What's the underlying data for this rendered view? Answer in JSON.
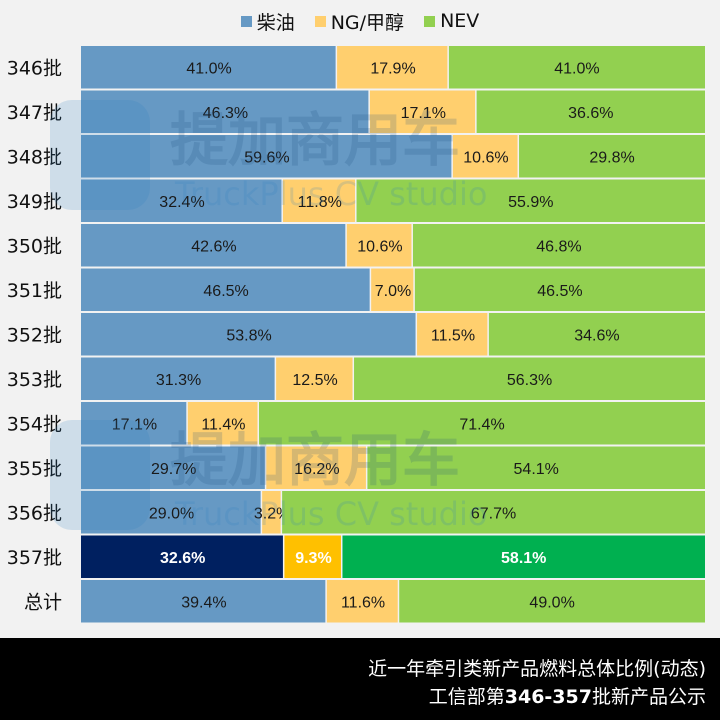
{
  "chart_data": {
    "type": "bar",
    "orientation": "horizontal",
    "stacked": "100%",
    "categories": [
      "346批",
      "347批",
      "348批",
      "349批",
      "350批",
      "351批",
      "352批",
      "353批",
      "354批",
      "355批",
      "356批",
      "357批",
      "总计"
    ],
    "series": [
      {
        "name": "柴油",
        "color": "#6699c4",
        "highlight_color": "#002060",
        "values": [
          41.0,
          46.3,
          59.6,
          32.4,
          42.6,
          46.5,
          53.8,
          31.3,
          17.1,
          29.7,
          29.0,
          32.6,
          39.4
        ],
        "labels": [
          "41.0%",
          "46.3%",
          "59.6%",
          "32.4%",
          "42.6%",
          "46.5%",
          "53.8%",
          "31.3%",
          "17.1%",
          "29.7%",
          "29.0%",
          "32.6%",
          "39.4%"
        ]
      },
      {
        "name": "NG/甲醇",
        "color": "#ffcf6e",
        "highlight_color": "#ffc000",
        "values": [
          17.9,
          17.1,
          10.6,
          11.8,
          10.6,
          7.0,
          11.5,
          12.5,
          11.4,
          16.2,
          3.2,
          9.3,
          11.6
        ],
        "labels": [
          "17.9%",
          "17.1%",
          "10.6%",
          "11.8%",
          "10.6%",
          "7.0%",
          "11.5%",
          "12.5%",
          "11.4%",
          "16.2%",
          "3.2%",
          "9.3%",
          "11.6%"
        ]
      },
      {
        "name": "NEV",
        "color": "#92d050",
        "highlight_color": "#00b050",
        "values": [
          41.0,
          36.6,
          29.8,
          55.9,
          46.8,
          46.5,
          34.6,
          56.3,
          71.4,
          54.1,
          67.7,
          58.1,
          49.0
        ],
        "labels": [
          "41.0%",
          "36.6%",
          "29.8%",
          "55.9%",
          "46.8%",
          "46.5%",
          "34.6%",
          "56.3%",
          "71.4%",
          "54.1%",
          "67.7%",
          "58.1%",
          "49.0%"
        ]
      }
    ],
    "highlight_category": "357批",
    "xlim": [
      0,
      100
    ],
    "legend": "top-center",
    "grid": false
  },
  "watermark": {
    "cn": "提加商用车",
    "en": "TruckPlus CV studio"
  },
  "footer": {
    "line1": "近一年牵引类新产品燃料总体比例(动态)",
    "line2_pre": "工信部第",
    "line2_bold": "346-357",
    "line2_post": "批新产品公示"
  }
}
